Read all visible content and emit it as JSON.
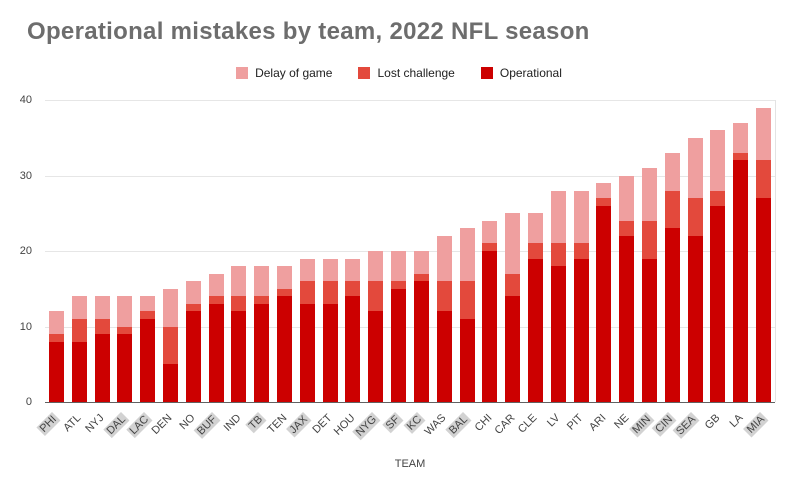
{
  "title": "Operational mistakes by team, 2022 NFL season",
  "legend": [
    {
      "label": "Delay of game",
      "color": "#ef9f9f"
    },
    {
      "label": "Lost challenge",
      "color": "#e3493c"
    },
    {
      "label": "Operational",
      "color": "#cc0000"
    }
  ],
  "chart_data": {
    "type": "bar",
    "stacked": true,
    "title": "Operational mistakes by team, 2022 NFL season",
    "xlabel": "TEAM",
    "ylabel": "",
    "ylim": [
      0,
      40
    ],
    "ytick_step": 10,
    "grid": true,
    "legend_position": "top",
    "categories": [
      "PHI",
      "ATL",
      "NYJ",
      "DAL",
      "LAC",
      "DEN",
      "NO",
      "BUF",
      "IND",
      "TB",
      "TEN",
      "JAX",
      "DET",
      "HOU",
      "NYG",
      "SF",
      "KC",
      "WAS",
      "BAL",
      "CHI",
      "CAR",
      "CLE",
      "LV",
      "PIT",
      "ARI",
      "NE",
      "MIN",
      "CIN",
      "SEA",
      "GB",
      "LA",
      "MIA"
    ],
    "highlighted_categories": [
      "PHI",
      "DAL",
      "LAC",
      "BUF",
      "TB",
      "JAX",
      "NYG",
      "SF",
      "KC",
      "BAL",
      "MIN",
      "CIN",
      "SEA",
      "MIA"
    ],
    "series": [
      {
        "name": "Operational",
        "color": "#cc0000",
        "values": [
          8,
          8,
          9,
          9,
          11,
          5,
          12,
          13,
          12,
          13,
          14,
          13,
          13,
          14,
          12,
          15,
          16,
          12,
          11,
          20,
          14,
          19,
          18,
          19,
          26,
          22,
          19,
          23,
          22,
          26,
          32,
          27
        ]
      },
      {
        "name": "Lost challenge",
        "color": "#e3493c",
        "values": [
          1,
          3,
          2,
          1,
          1,
          5,
          1,
          1,
          2,
          1,
          1,
          3,
          3,
          2,
          4,
          1,
          1,
          4,
          5,
          1,
          3,
          2,
          3,
          2,
          1,
          2,
          5,
          5,
          5,
          2,
          1,
          5
        ]
      },
      {
        "name": "Delay of game",
        "color": "#ef9f9f",
        "values": [
          3,
          3,
          3,
          4,
          2,
          5,
          3,
          3,
          4,
          4,
          3,
          3,
          3,
          3,
          4,
          4,
          3,
          6,
          7,
          3,
          8,
          4,
          7,
          7,
          2,
          6,
          7,
          5,
          8,
          8,
          4,
          7
        ]
      }
    ],
    "totals": [
      12,
      14,
      14,
      14,
      14,
      15,
      16,
      17,
      18,
      18,
      18,
      19,
      19,
      19,
      20,
      20,
      20,
      22,
      23,
      24,
      25,
      25,
      28,
      28,
      29,
      30,
      31,
      33,
      35,
      36,
      37,
      39
    ]
  }
}
